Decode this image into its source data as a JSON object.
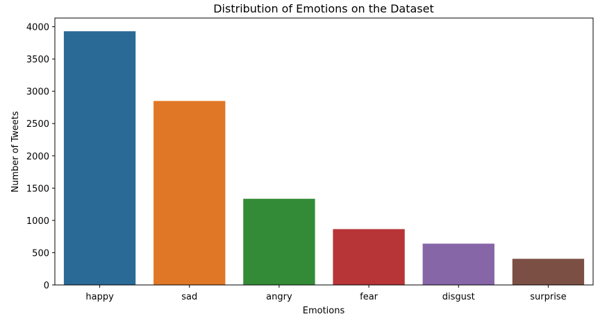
{
  "chart_data": {
    "type": "bar",
    "title": "Distribution of Emotions on the Dataset",
    "xlabel": "Emotions",
    "ylabel": "Number of Tweets",
    "categories": [
      "happy",
      "sad",
      "angry",
      "fear",
      "disgust",
      "surprise"
    ],
    "values": [
      3930,
      2850,
      1335,
      865,
      640,
      405
    ],
    "ylim": [
      0,
      4135
    ],
    "yticks": [
      0,
      500,
      1000,
      1500,
      2000,
      2500,
      3000,
      3500,
      4000
    ],
    "colors": [
      "#2a6a97",
      "#e07726",
      "#338b37",
      "#b73537",
      "#8766a8",
      "#7c4f45"
    ],
    "grid": false,
    "legend": "none"
  }
}
